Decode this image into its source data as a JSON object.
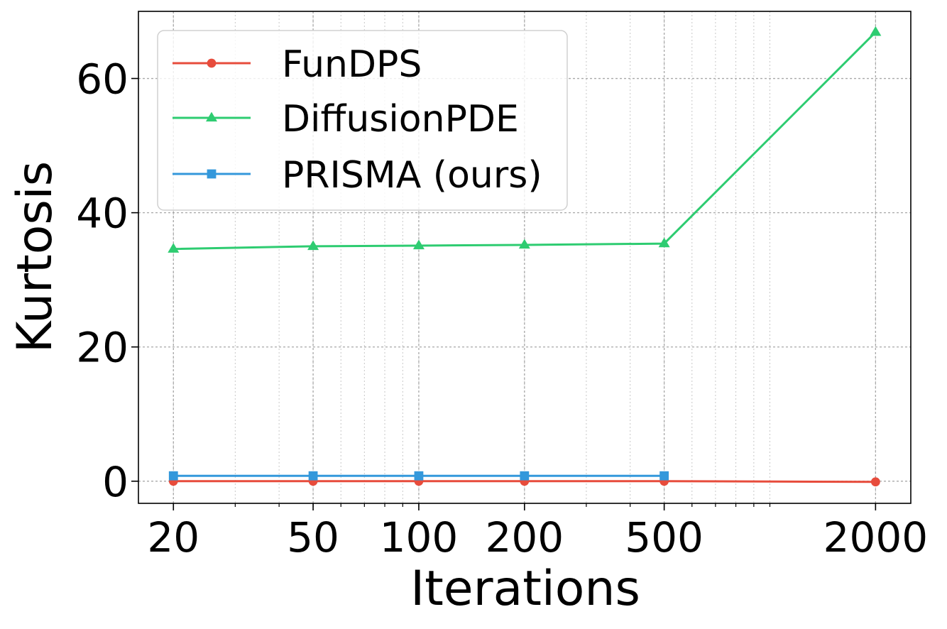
{
  "chart_data": {
    "type": "line",
    "xlabel": "Iterations",
    "ylabel": "Kurtosis",
    "xscale": "log",
    "xlim": [
      15.9,
      2520
    ],
    "ylim": [
      -3.3,
      70
    ],
    "xticks": [
      20,
      50,
      100,
      200,
      500,
      2000
    ],
    "xtick_labels": [
      "20",
      "50",
      "100",
      "200",
      "500",
      "2000"
    ],
    "yticks": [
      0,
      20,
      40,
      60
    ],
    "ytick_labels": [
      "0",
      "20",
      "40",
      "60"
    ],
    "grid": true,
    "legend_position": "top-left",
    "series": [
      {
        "name": "FunDPS",
        "color": "#e74c3c",
        "marker": "circle",
        "x": [
          20,
          50,
          100,
          200,
          500,
          2000
        ],
        "y": [
          0.0,
          0.0,
          0.0,
          0.0,
          0.0,
          -0.1
        ]
      },
      {
        "name": "DiffusionPDE",
        "color": "#2ecc71",
        "marker": "triangle",
        "x": [
          20,
          50,
          100,
          200,
          500,
          2000
        ],
        "y": [
          34.6,
          35.0,
          35.1,
          35.2,
          35.4,
          66.9
        ]
      },
      {
        "name": "PRISMA (ours)",
        "color": "#3498db",
        "marker": "square",
        "x": [
          20,
          50,
          100,
          200,
          500
        ],
        "y": [
          0.8,
          0.8,
          0.8,
          0.8,
          0.8
        ]
      }
    ]
  }
}
